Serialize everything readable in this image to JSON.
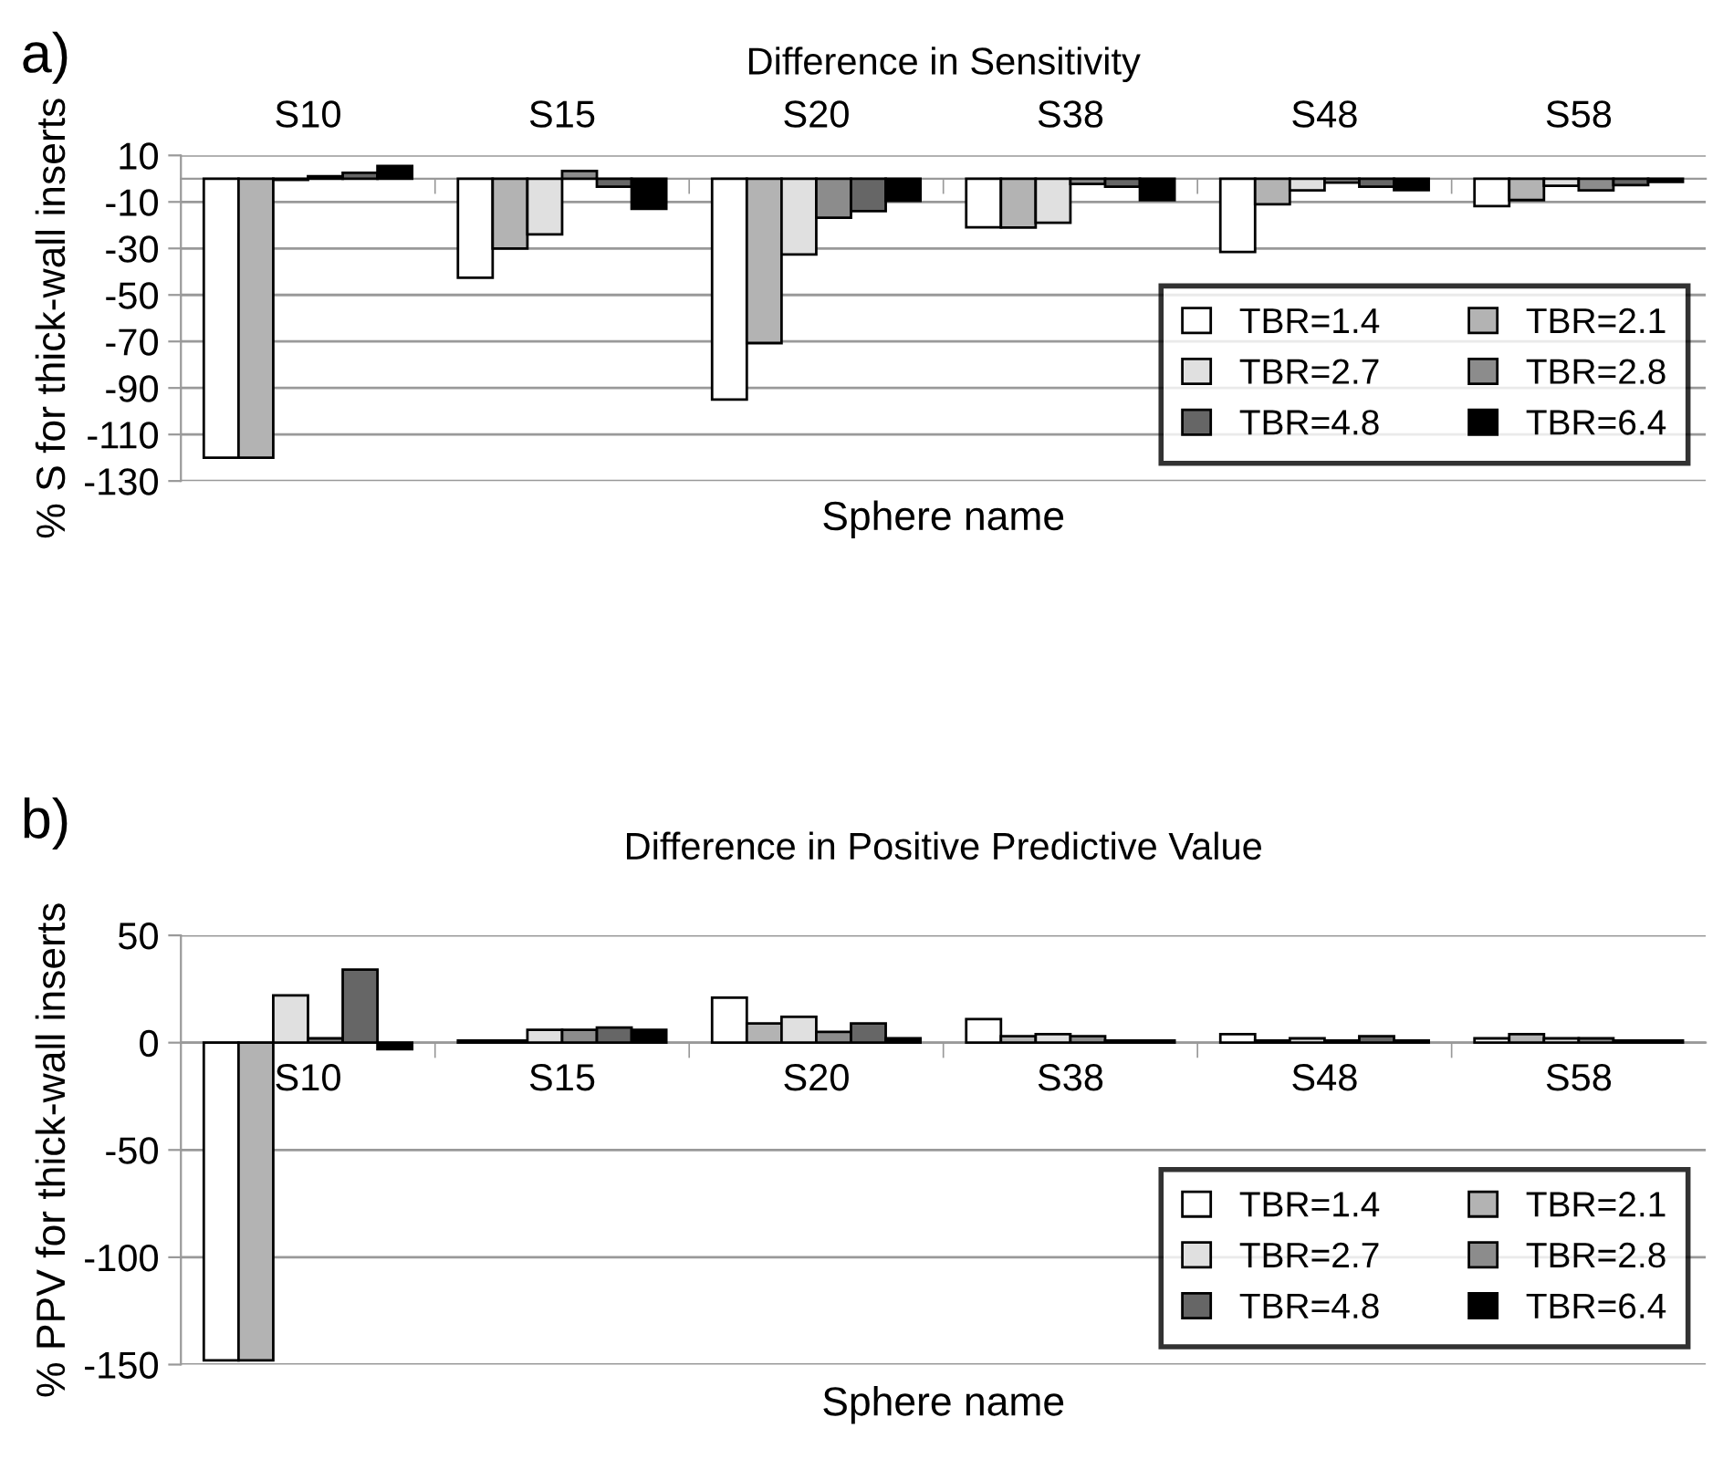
{
  "chart_data": [
    {
      "type": "bar",
      "title": "Difference in Sensitivity",
      "xlabel": "Sphere name",
      "ylabel": "% S for thick-wall inserts",
      "annotations": [
        "a)"
      ],
      "categories": [
        "S10",
        "S15",
        "S20",
        "S38",
        "S48",
        "S58"
      ],
      "series": [
        {
          "name": "TBR=1.4",
          "color": "#ffffff",
          "values": [
            -120,
            -42.6,
            -95,
            -20.9,
            -31.5,
            -11.8
          ]
        },
        {
          "name": "TBR=2.1",
          "color": "#b3b3b3",
          "values": [
            -120,
            -30,
            -70.7,
            -21,
            -11,
            -9.2
          ]
        },
        {
          "name": "TBR=2.7",
          "color": "#e0e0e0",
          "values": [
            -0.5,
            -24,
            -32.6,
            -19,
            -5,
            -3.1
          ]
        },
        {
          "name": "TBR=2.8",
          "color": "#8c8c8c",
          "values": [
            1,
            3.3,
            -16.8,
            -2.3,
            -1.7,
            -5
          ]
        },
        {
          "name": "TBR=4.8",
          "color": "#666666",
          "values": [
            2.5,
            -3.5,
            -14,
            -3.5,
            -3.5,
            -2.8
          ]
        },
        {
          "name": "TBR=6.4",
          "color": "#000000",
          "values": [
            5.5,
            -13,
            -9.5,
            -9.2,
            -4.9,
            -1.4
          ]
        }
      ],
      "ylim": [
        -130,
        10
      ],
      "yticks": [
        -130,
        -110,
        -90,
        -70,
        -50,
        -30,
        -10,
        10
      ],
      "grid": "y",
      "legend": "bottom right"
    },
    {
      "type": "bar",
      "title": "Difference in Positive Predictive Value",
      "xlabel": "Sphere name",
      "ylabel": "% PPV for thick-wall inserts",
      "annotations": [
        "b)"
      ],
      "categories": [
        "S10",
        "S15",
        "S20",
        "S38",
        "S48",
        "S58"
      ],
      "series": [
        {
          "name": "TBR=1.4",
          "color": "#ffffff",
          "values": [
            -148,
            1,
            21,
            11,
            4,
            2
          ]
        },
        {
          "name": "TBR=2.1",
          "color": "#b3b3b3",
          "values": [
            -148,
            1,
            9,
            3,
            1,
            4
          ]
        },
        {
          "name": "TBR=2.7",
          "color": "#e0e0e0",
          "values": [
            22,
            6,
            12,
            4,
            2,
            2
          ]
        },
        {
          "name": "TBR=2.8",
          "color": "#8c8c8c",
          "values": [
            2,
            6,
            5,
            3,
            1,
            2
          ]
        },
        {
          "name": "TBR=4.8",
          "color": "#666666",
          "values": [
            34,
            7,
            9,
            1,
            3,
            1
          ]
        },
        {
          "name": "TBR=6.4",
          "color": "#000000",
          "values": [
            -3,
            6,
            2,
            1,
            1,
            1
          ]
        }
      ],
      "ylim": [
        -150,
        50
      ],
      "yticks": [
        -150,
        -100,
        -50,
        0,
        50
      ],
      "grid": "y",
      "legend": "bottom right"
    }
  ]
}
